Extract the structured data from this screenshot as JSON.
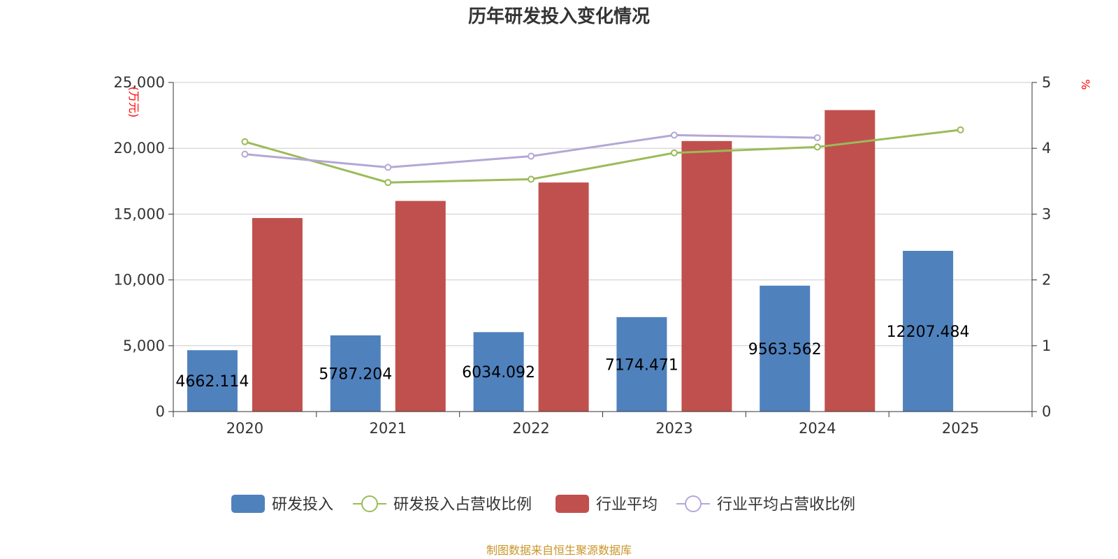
{
  "chart_data": {
    "type": "bar",
    "title": "历年研发投入变化情况",
    "categories": [
      "2020",
      "2021",
      "2022",
      "2023",
      "2024",
      "2025"
    ],
    "y_left": {
      "unit": "(万元)",
      "ylim": [
        0,
        25000
      ],
      "ticks": [
        "0",
        "5,000",
        "10,000",
        "15,000",
        "20,000",
        "25,000"
      ],
      "tick_values": [
        0,
        5000,
        10000,
        15000,
        20000,
        25000
      ]
    },
    "y_right": {
      "unit": "%",
      "ylim": [
        0,
        5
      ],
      "ticks": [
        "0",
        "1",
        "2",
        "3",
        "4",
        "5"
      ],
      "tick_values": [
        0,
        1,
        2,
        3,
        4,
        5
      ]
    },
    "series": [
      {
        "name": "研发投入",
        "type": "bar",
        "axis": "left",
        "color": "#4f81bd",
        "values": [
          4662.114,
          5787.204,
          6034.092,
          7174.471,
          9563.562,
          12207.484
        ],
        "labels": [
          "4662.114",
          "5787.204",
          "6034.092",
          "7174.471",
          "9563.562",
          "12207.484"
        ]
      },
      {
        "name": "研发投入占营收比例",
        "type": "line",
        "axis": "right",
        "color": "#9bbb59",
        "values": [
          4.1,
          3.48,
          3.53,
          3.93,
          4.02,
          4.28
        ]
      },
      {
        "name": "行业平均",
        "type": "bar",
        "axis": "left",
        "color": "#c0504d",
        "values": [
          14700,
          16000,
          17400,
          20550,
          22900,
          null
        ]
      },
      {
        "name": "行业平均占营收比例",
        "type": "line",
        "axis": "right",
        "color": "#b4a7d6",
        "values": [
          3.91,
          3.71,
          3.88,
          4.2,
          4.16,
          null
        ]
      }
    ],
    "grid": true,
    "legend_position": "bottom",
    "source": "制图数据来自恒生聚源数据库"
  }
}
